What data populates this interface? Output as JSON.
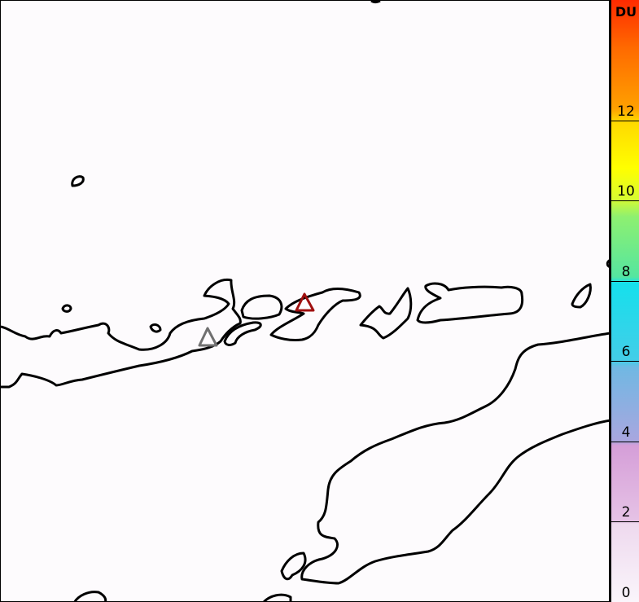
{
  "colorbar": {
    "unit": "DU",
    "ticks": [
      "0",
      "2",
      "4",
      "6",
      "8",
      "10",
      "12"
    ],
    "range": [
      0,
      15
    ],
    "colors": [
      "#faf5fb",
      "#d59ed8",
      "#70b8e3",
      "#15e0ec",
      "#8ef070",
      "#ffff00",
      "#ff8a00",
      "#ff2a00"
    ]
  },
  "markers": [
    {
      "name": "volcano-red",
      "color": "#a01010"
    },
    {
      "name": "volcano-gray",
      "color": "#707070"
    }
  ]
}
